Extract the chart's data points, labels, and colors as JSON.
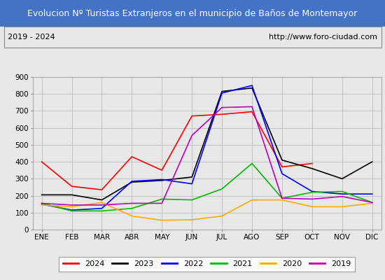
{
  "title": "Evolucion Nº Turistas Extranjeros en el municipio de Baños de Montemayor",
  "subtitle_left": "2019 - 2024",
  "subtitle_right": "http://www.foro-ciudad.com",
  "title_bg_color": "#4472c4",
  "title_text_color": "#ffffff",
  "months": [
    "ENE",
    "FEB",
    "MAR",
    "ABR",
    "MAY",
    "JUN",
    "JUL",
    "AGO",
    "SEP",
    "OCT",
    "NOV",
    "DIC"
  ],
  "ylim": [
    0,
    900
  ],
  "yticks": [
    0,
    100,
    200,
    300,
    400,
    500,
    600,
    700,
    800,
    900
  ],
  "series": {
    "2024": {
      "color": "#ff0000",
      "data": [
        400,
        255,
        235,
        430,
        350,
        670,
        680,
        695,
        370,
        390,
        null,
        null
      ]
    },
    "2023": {
      "color": "#000000",
      "data": [
        205,
        205,
        175,
        280,
        290,
        310,
        815,
        835,
        410,
        360,
        300,
        400
      ]
    },
    "2022": {
      "color": "#0000ff",
      "data": [
        150,
        115,
        125,
        285,
        295,
        270,
        805,
        850,
        330,
        225,
        210,
        210
      ]
    },
    "2021": {
      "color": "#00bb00",
      "data": [
        155,
        110,
        110,
        125,
        180,
        175,
        240,
        390,
        185,
        220,
        225,
        160
      ]
    },
    "2020": {
      "color": "#ffaa00",
      "data": [
        145,
        135,
        160,
        80,
        55,
        58,
        80,
        175,
        175,
        135,
        135,
        155
      ]
    },
    "2019": {
      "color": "#bb00bb",
      "data": [
        155,
        145,
        145,
        155,
        155,
        555,
        720,
        725,
        185,
        180,
        195,
        160
      ]
    }
  },
  "legend_order": [
    "2024",
    "2023",
    "2022",
    "2021",
    "2020",
    "2019"
  ],
  "background_color": "#e8e8e8",
  "plot_bg_color": "#e8e8e8",
  "grid_color": "#bbbbbb",
  "fig_width": 5.5,
  "fig_height": 4.0,
  "dpi": 100
}
